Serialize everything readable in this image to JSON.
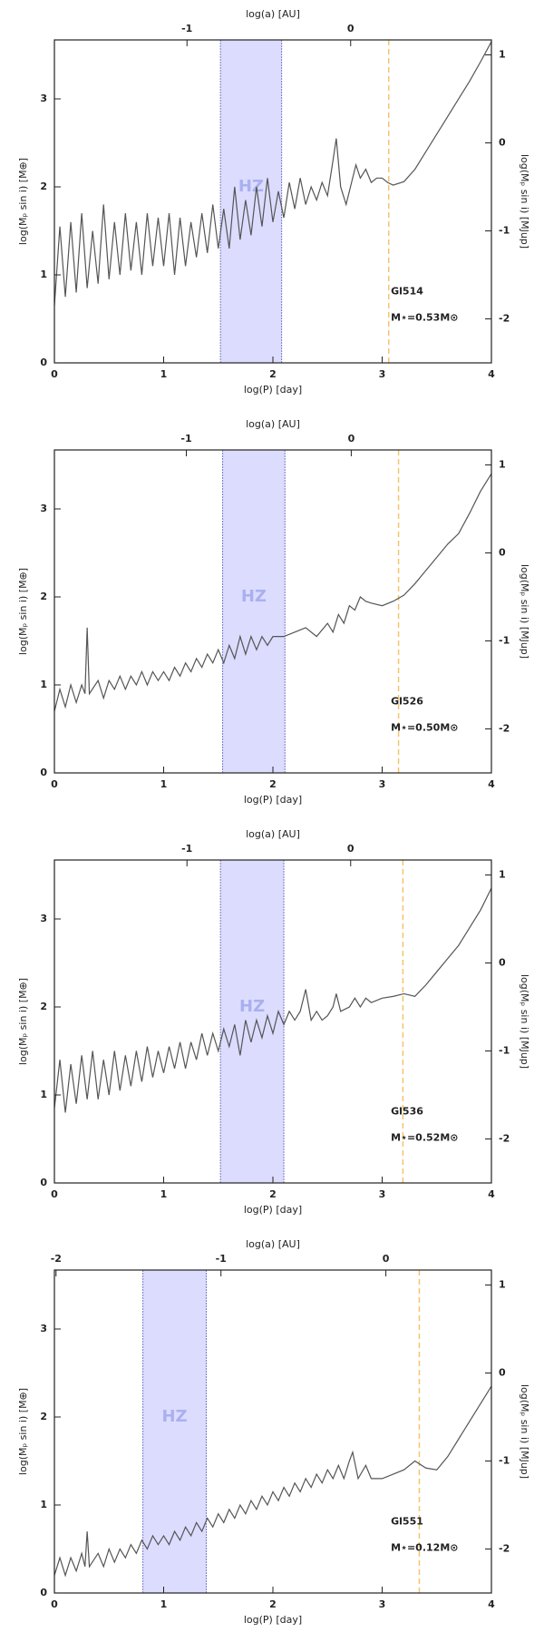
{
  "chart_data": [
    {
      "type": "line",
      "xlabel": "log(P) [day]",
      "ylabel": "log(Mₚ sin i) [M⊕]",
      "y2label": "log(Mₚ sin i) [MJup]",
      "x2label": "log(a) [AU]",
      "xlim": [
        0,
        4
      ],
      "xticks": [
        0,
        1,
        2,
        3,
        4
      ],
      "x2lim": [
        -1.81,
        0.86
      ],
      "x2ticks": [
        -1,
        0
      ],
      "ylim": [
        0,
        3.67
      ],
      "yticks": [
        0,
        1,
        2,
        3
      ],
      "y2lim": [
        -2.5,
        1.17
      ],
      "y2ticks": [
        1,
        0,
        -1,
        -2
      ],
      "habitable_zone": {
        "label": "HZ",
        "x": [
          1.52,
          2.08
        ],
        "color": "#dcdcff"
      },
      "snow_line": {
        "x": 3.06,
        "color": "#f5c36b"
      },
      "annotations": [
        "Gl514",
        "M⋆=0.53M⊙"
      ],
      "x": [
        0,
        0.05,
        0.1,
        0.15,
        0.2,
        0.25,
        0.3,
        0.35,
        0.4,
        0.45,
        0.5,
        0.55,
        0.6,
        0.65,
        0.7,
        0.75,
        0.8,
        0.85,
        0.9,
        0.95,
        1.0,
        1.05,
        1.1,
        1.15,
        1.2,
        1.25,
        1.3,
        1.35,
        1.4,
        1.45,
        1.5,
        1.55,
        1.6,
        1.65,
        1.7,
        1.75,
        1.8,
        1.85,
        1.9,
        1.95,
        2.0,
        2.05,
        2.1,
        2.15,
        2.2,
        2.25,
        2.3,
        2.35,
        2.4,
        2.45,
        2.5,
        2.55,
        2.58,
        2.62,
        2.67,
        2.72,
        2.76,
        2.8,
        2.85,
        2.9,
        2.95,
        3.0,
        3.05,
        3.1,
        3.2,
        3.3,
        3.4,
        3.5,
        3.6,
        3.7,
        3.8,
        3.9,
        4.0
      ],
      "series": [
        {
          "color": "#555555",
          "values": [
            0.65,
            1.55,
            0.75,
            1.6,
            0.8,
            1.7,
            0.85,
            1.5,
            0.9,
            1.8,
            0.95,
            1.6,
            1.0,
            1.7,
            1.05,
            1.6,
            1.0,
            1.7,
            1.1,
            1.65,
            1.1,
            1.7,
            1.0,
            1.65,
            1.1,
            1.6,
            1.2,
            1.7,
            1.25,
            1.8,
            1.3,
            1.75,
            1.3,
            2.0,
            1.4,
            1.85,
            1.45,
            2.0,
            1.55,
            2.1,
            1.6,
            1.95,
            1.65,
            2.05,
            1.75,
            2.1,
            1.8,
            2.0,
            1.85,
            2.05,
            1.9,
            2.3,
            2.55,
            2.0,
            1.8,
            2.05,
            2.25,
            2.1,
            2.2,
            2.05,
            2.1,
            2.1,
            2.05,
            2.02,
            2.06,
            2.2,
            2.4,
            2.6,
            2.8,
            3.0,
            3.2,
            3.42,
            3.65
          ]
        }
      ]
    },
    {
      "type": "line",
      "xlabel": "log(P) [day]",
      "ylabel": "log(Mₚ sin i) [M⊕]",
      "y2label": "log(Mₚ sin i) [MJup]",
      "x2label": "log(a) [AU]",
      "xlim": [
        0,
        4
      ],
      "xticks": [
        0,
        1,
        2,
        3,
        4
      ],
      "x2lim": [
        -1.8,
        0.85
      ],
      "x2ticks": [
        -1,
        0
      ],
      "ylim": [
        0,
        3.67
      ],
      "yticks": [
        0,
        1,
        2,
        3
      ],
      "y2lim": [
        -2.5,
        1.17
      ],
      "y2ticks": [
        1,
        0,
        -1,
        -2
      ],
      "habitable_zone": {
        "label": "HZ",
        "x": [
          1.54,
          2.11
        ],
        "color": "#dcdcff"
      },
      "snow_line": {
        "x": 3.15,
        "color": "#f5c36b"
      },
      "annotations": [
        "Gl526",
        "M⋆=0.50M⊙"
      ],
      "x": [
        0,
        0.05,
        0.1,
        0.15,
        0.2,
        0.25,
        0.28,
        0.3,
        0.32,
        0.4,
        0.45,
        0.5,
        0.55,
        0.6,
        0.65,
        0.7,
        0.75,
        0.8,
        0.85,
        0.9,
        0.95,
        1.0,
        1.05,
        1.1,
        1.15,
        1.2,
        1.25,
        1.3,
        1.35,
        1.4,
        1.45,
        1.5,
        1.55,
        1.6,
        1.65,
        1.7,
        1.75,
        1.8,
        1.85,
        1.9,
        1.95,
        2.0,
        2.1,
        2.2,
        2.3,
        2.4,
        2.5,
        2.55,
        2.6,
        2.65,
        2.7,
        2.75,
        2.8,
        2.85,
        2.9,
        3.0,
        3.1,
        3.2,
        3.3,
        3.4,
        3.5,
        3.6,
        3.7,
        3.8,
        3.9,
        4.0
      ],
      "series": [
        {
          "color": "#555555",
          "values": [
            0.7,
            0.95,
            0.75,
            1.0,
            0.8,
            1.0,
            0.9,
            1.65,
            0.9,
            1.05,
            0.85,
            1.05,
            0.95,
            1.1,
            0.95,
            1.1,
            1.0,
            1.15,
            1.0,
            1.15,
            1.05,
            1.15,
            1.05,
            1.2,
            1.1,
            1.25,
            1.15,
            1.3,
            1.2,
            1.35,
            1.25,
            1.4,
            1.25,
            1.45,
            1.3,
            1.55,
            1.35,
            1.55,
            1.4,
            1.55,
            1.45,
            1.55,
            1.55,
            1.6,
            1.65,
            1.55,
            1.7,
            1.6,
            1.8,
            1.7,
            1.9,
            1.85,
            2.0,
            1.95,
            1.93,
            1.9,
            1.95,
            2.02,
            2.15,
            2.3,
            2.45,
            2.6,
            2.72,
            2.95,
            3.2,
            3.4
          ]
        }
      ]
    },
    {
      "type": "line",
      "xlabel": "log(P) [day]",
      "ylabel": "log(Mₚ sin i) [M⊕]",
      "y2label": "log(Mₚ sin i) [MJup]",
      "x2label": "log(a) [AU]",
      "xlim": [
        0,
        4
      ],
      "xticks": [
        0,
        1,
        2,
        3,
        4
      ],
      "x2lim": [
        -1.81,
        0.86
      ],
      "x2ticks": [
        -1,
        0
      ],
      "ylim": [
        0,
        3.67
      ],
      "yticks": [
        0,
        1,
        2,
        3
      ],
      "y2lim": [
        -2.5,
        1.17
      ],
      "y2ticks": [
        1,
        0,
        -1,
        -2
      ],
      "habitable_zone": {
        "label": "HZ",
        "x": [
          1.52,
          2.1
        ],
        "color": "#dcdcff"
      },
      "snow_line": {
        "x": 3.19,
        "color": "#f5c36b"
      },
      "annotations": [
        "Gl536",
        "M⋆=0.52M⊙"
      ],
      "x": [
        0,
        0.05,
        0.1,
        0.15,
        0.2,
        0.25,
        0.3,
        0.35,
        0.4,
        0.45,
        0.5,
        0.55,
        0.6,
        0.65,
        0.7,
        0.75,
        0.8,
        0.85,
        0.9,
        0.95,
        1.0,
        1.05,
        1.1,
        1.15,
        1.2,
        1.25,
        1.3,
        1.35,
        1.4,
        1.45,
        1.5,
        1.55,
        1.6,
        1.65,
        1.7,
        1.75,
        1.8,
        1.85,
        1.9,
        1.95,
        2.0,
        2.05,
        2.1,
        2.15,
        2.2,
        2.25,
        2.3,
        2.35,
        2.4,
        2.45,
        2.5,
        2.55,
        2.58,
        2.62,
        2.7,
        2.75,
        2.8,
        2.85,
        2.9,
        3.0,
        3.1,
        3.2,
        3.3,
        3.4,
        3.5,
        3.6,
        3.7,
        3.8,
        3.9,
        4.0
      ],
      "series": [
        {
          "color": "#555555",
          "values": [
            0.85,
            1.4,
            0.8,
            1.35,
            0.9,
            1.45,
            0.95,
            1.5,
            0.95,
            1.4,
            1.0,
            1.5,
            1.05,
            1.45,
            1.1,
            1.5,
            1.15,
            1.55,
            1.2,
            1.5,
            1.25,
            1.55,
            1.3,
            1.6,
            1.3,
            1.6,
            1.4,
            1.7,
            1.45,
            1.7,
            1.5,
            1.75,
            1.55,
            1.8,
            1.45,
            1.85,
            1.6,
            1.85,
            1.65,
            1.9,
            1.7,
            1.95,
            1.8,
            1.95,
            1.85,
            1.95,
            2.2,
            1.85,
            1.95,
            1.85,
            1.9,
            2.0,
            2.15,
            1.95,
            2.0,
            2.1,
            2.0,
            2.1,
            2.05,
            2.1,
            2.12,
            2.15,
            2.12,
            2.25,
            2.4,
            2.55,
            2.7,
            2.9,
            3.1,
            3.35
          ]
        }
      ]
    },
    {
      "type": "line",
      "xlabel": "log(P) [day]",
      "ylabel": "log(Mₚ sin i) [M⊕]",
      "y2label": "log(Mₚ sin i) [MJup]",
      "x2label": "log(a) [AU]",
      "xlim": [
        0,
        4
      ],
      "xticks": [
        0,
        1,
        2,
        3,
        4
      ],
      "x2lim": [
        -2.01,
        0.64
      ],
      "x2ticks": [
        -2,
        -1,
        0
      ],
      "ylim": [
        0,
        3.67
      ],
      "yticks": [
        0,
        1,
        2,
        3
      ],
      "y2lim": [
        -2.5,
        1.17
      ],
      "y2ticks": [
        1,
        0,
        -1,
        -2
      ],
      "habitable_zone": {
        "label": "HZ",
        "x": [
          0.81,
          1.39
        ],
        "color": "#dcdcff"
      },
      "snow_line": {
        "x": 3.34,
        "color": "#f5c36b"
      },
      "annotations": [
        "Gl551",
        "M⋆=0.12M⊙"
      ],
      "x": [
        0,
        0.05,
        0.1,
        0.15,
        0.2,
        0.25,
        0.28,
        0.3,
        0.32,
        0.4,
        0.45,
        0.5,
        0.55,
        0.6,
        0.65,
        0.7,
        0.75,
        0.8,
        0.85,
        0.9,
        0.95,
        1.0,
        1.05,
        1.1,
        1.15,
        1.2,
        1.25,
        1.3,
        1.35,
        1.4,
        1.45,
        1.5,
        1.55,
        1.6,
        1.65,
        1.7,
        1.75,
        1.8,
        1.85,
        1.9,
        1.95,
        2.0,
        2.05,
        2.1,
        2.15,
        2.2,
        2.25,
        2.3,
        2.35,
        2.4,
        2.45,
        2.5,
        2.55,
        2.6,
        2.65,
        2.7,
        2.73,
        2.78,
        2.85,
        2.9,
        3.0,
        3.1,
        3.2,
        3.3,
        3.4,
        3.5,
        3.6,
        3.7,
        3.8,
        3.9,
        4.0
      ],
      "series": [
        {
          "color": "#555555",
          "values": [
            0.2,
            0.4,
            0.2,
            0.4,
            0.25,
            0.45,
            0.3,
            0.7,
            0.3,
            0.45,
            0.3,
            0.5,
            0.35,
            0.5,
            0.4,
            0.55,
            0.45,
            0.6,
            0.5,
            0.65,
            0.55,
            0.65,
            0.55,
            0.7,
            0.6,
            0.75,
            0.65,
            0.8,
            0.7,
            0.85,
            0.75,
            0.9,
            0.8,
            0.95,
            0.85,
            1.0,
            0.9,
            1.05,
            0.95,
            1.1,
            1.0,
            1.15,
            1.05,
            1.2,
            1.1,
            1.25,
            1.15,
            1.3,
            1.2,
            1.35,
            1.25,
            1.4,
            1.3,
            1.45,
            1.3,
            1.5,
            1.6,
            1.3,
            1.45,
            1.3,
            1.3,
            1.35,
            1.4,
            1.5,
            1.42,
            1.4,
            1.55,
            1.75,
            1.95,
            2.15,
            2.35
          ]
        }
      ]
    }
  ]
}
